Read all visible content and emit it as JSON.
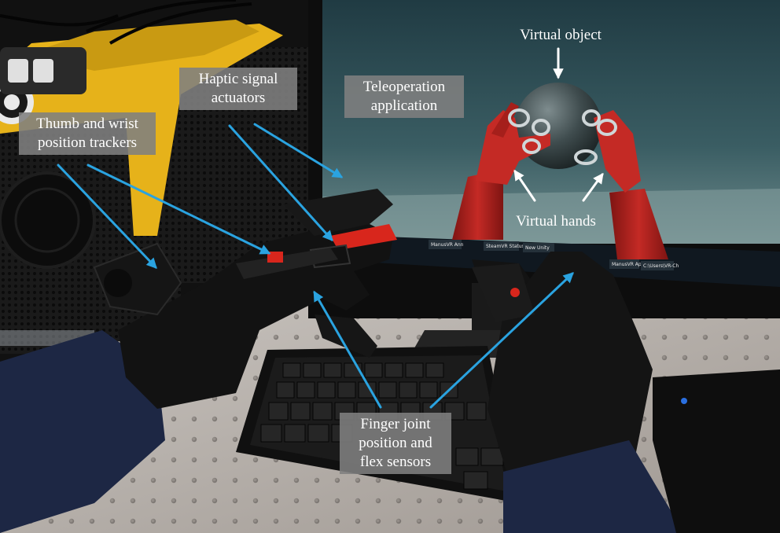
{
  "annotations": {
    "haptic": [
      "Haptic signal",
      "actuators"
    ],
    "teleoperation": [
      "Teleoperation",
      "application"
    ],
    "trackers": [
      "Thumb and wrist",
      "position trackers"
    ],
    "virtual_object": "Virtual object",
    "virtual_hands": "Virtual hands",
    "finger_sensors": [
      "Finger joint",
      "position and",
      "flex sensors"
    ]
  },
  "taskbar": {
    "items": [
      "ManusVR Ann",
      "SteamVR Status",
      "New Unity",
      "ManusVR Appli",
      "C:\\Users\\VR-Ch"
    ]
  },
  "colors": {
    "arrow_blue": "#2aa3e0",
    "arrow_white": "#ffffff",
    "label_bg": "#808080",
    "screen_bg": "#2f4f55",
    "virtual_hand": "#b21f1c",
    "virtual_object": "#3e4a4c",
    "haptic_red": "#e0281e",
    "desk_bg": "#b9b3ad"
  }
}
